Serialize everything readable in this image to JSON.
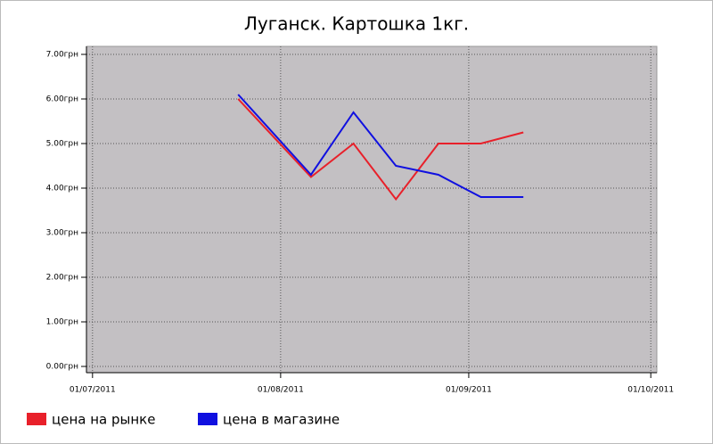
{
  "chart_data": {
    "type": "line",
    "title": "Луганск. Картошка 1кг.",
    "x": [
      "2011-07-25",
      "2011-08-06",
      "2011-08-13",
      "2011-08-20",
      "2011-08-27",
      "2011-09-03",
      "2011-09-10"
    ],
    "series": [
      {
        "name": "цена на рынке",
        "color": "#e8202a",
        "values": [
          6.0,
          4.25,
          5.0,
          3.75,
          5.0,
          5.0,
          5.25
        ]
      },
      {
        "name": "цена в магазине",
        "color": "#1010e0",
        "values": [
          6.1,
          4.3,
          5.7,
          4.5,
          4.3,
          3.8,
          3.8
        ]
      }
    ],
    "xlim": [
      "2011-06-30",
      "2011-10-02"
    ],
    "xticks": [
      {
        "value": "2011-07-01",
        "label": "01/07/2011"
      },
      {
        "value": "2011-08-01",
        "label": "01/08/2011"
      },
      {
        "value": "2011-09-01",
        "label": "01/09/2011"
      },
      {
        "value": "2011-10-01",
        "label": "01/10/2011"
      }
    ],
    "ylim": [
      -0.14,
      7.18
    ],
    "yticks": [
      {
        "value": 0,
        "label": "0.00грн"
      },
      {
        "value": 1,
        "label": "1.00грн"
      },
      {
        "value": 2,
        "label": "2.00грн"
      },
      {
        "value": 3,
        "label": "3.00грн"
      },
      {
        "value": 4,
        "label": "4.00грн"
      },
      {
        "value": 5,
        "label": "5.00грн"
      },
      {
        "value": 6,
        "label": "6.00грн"
      },
      {
        "value": 7,
        "label": "7.00грн"
      }
    ],
    "grid": true,
    "background": "#c3c0c3"
  }
}
